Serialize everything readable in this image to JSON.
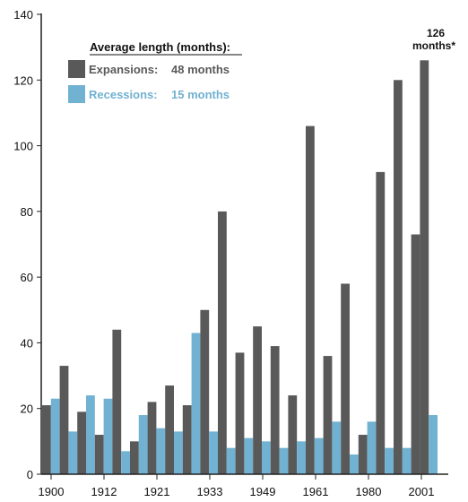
{
  "chart_data": {
    "type": "bar",
    "title": "",
    "xlabel": "",
    "ylabel": "",
    "ylim": [
      0,
      140
    ],
    "yticks": [
      0,
      20,
      40,
      60,
      80,
      100,
      120,
      140
    ],
    "xtick_labels": [
      "1900",
      "1912",
      "1921",
      "1933",
      "1949",
      "1961",
      "1980",
      "2001"
    ],
    "grid": false,
    "legend": {
      "title": "Average length (months):",
      "position": "top-left",
      "items": [
        {
          "label": "Expansions:",
          "value": "48 months"
        },
        {
          "label": "Recessions:",
          "value": "15 months"
        }
      ]
    },
    "annotation": {
      "line1": "126",
      "line2": "months*"
    },
    "colors": {
      "expansions": "#595959",
      "recessions": "#71b1d1",
      "axis": "#222222"
    },
    "series": [
      {
        "name": "Expansions",
        "values": [
          21,
          19,
          44,
          22,
          21,
          80,
          45,
          24,
          36,
          12,
          120,
          126
        ]
      },
      {
        "name": "Recessions",
        "values": [
          23,
          24,
          7,
          14,
          43,
          8,
          10,
          10,
          16,
          16,
          8,
          18
        ]
      },
      {
        "name": "Expansions",
        "values": [
          33,
          12,
          10,
          27,
          50,
          37,
          39,
          106,
          58,
          92,
          73
        ]
      },
      {
        "name": "Recessions",
        "values": [
          13,
          23,
          18,
          13,
          13,
          11,
          8,
          11,
          6,
          8
        ]
      }
    ]
  }
}
